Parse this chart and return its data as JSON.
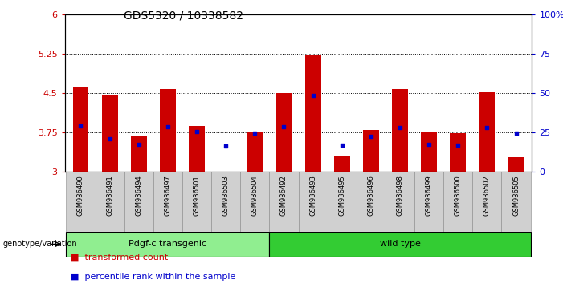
{
  "title": "GDS5320 / 10338582",
  "samples": [
    "GSM936490",
    "GSM936491",
    "GSM936494",
    "GSM936497",
    "GSM936501",
    "GSM936503",
    "GSM936504",
    "GSM936492",
    "GSM936493",
    "GSM936495",
    "GSM936496",
    "GSM936498",
    "GSM936499",
    "GSM936500",
    "GSM936502",
    "GSM936505"
  ],
  "transformed_count": [
    4.62,
    4.47,
    3.68,
    4.57,
    3.88,
    3.01,
    3.75,
    4.5,
    5.22,
    3.3,
    3.8,
    4.57,
    3.75,
    3.74,
    4.52,
    3.28
  ],
  "percentile_rank": [
    3.88,
    3.63,
    3.52,
    3.86,
    3.76,
    3.49,
    3.73,
    3.86,
    4.46,
    3.51,
    3.68,
    3.84,
    3.52,
    3.51,
    3.84,
    3.73
  ],
  "bar_bottom": 3.0,
  "red_color": "#cc0000",
  "blue_color": "#0000cc",
  "ylim_left": [
    3.0,
    6.0
  ],
  "ylim_right": [
    0,
    100
  ],
  "yticks_left": [
    3.0,
    3.75,
    4.5,
    5.25,
    6.0
  ],
  "ytick_labels_left": [
    "3",
    "3.75",
    "4.5",
    "5.25",
    "6"
  ],
  "yticks_right": [
    0,
    25,
    50,
    75,
    100
  ],
  "ytick_labels_right": [
    "0",
    "25",
    "50",
    "75",
    "100%"
  ],
  "hlines": [
    3.75,
    4.5,
    5.25
  ],
  "group1_label": "Pdgf-c transgenic",
  "group1_count": 7,
  "group2_label": "wild type",
  "group_label_y": "genotype/variation",
  "legend_red": "transformed count",
  "legend_blue": "percentile rank within the sample",
  "bg_plot": "#ffffff",
  "bg_xtick": "#d0d0d0",
  "group1_color": "#90ee90",
  "group2_color": "#33cc33",
  "bar_width": 0.55,
  "title_fontsize": 10,
  "tick_fontsize": 8,
  "sample_fontsize": 6,
  "legend_fontsize": 8
}
